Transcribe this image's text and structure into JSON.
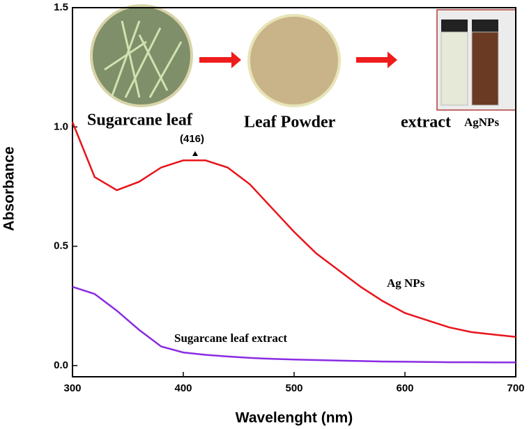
{
  "chart_data": {
    "type": "line",
    "x_label": "Wavelenght (nm)",
    "y_label": "Absorbance",
    "x": [
      300,
      320,
      340,
      360,
      380,
      400,
      420,
      440,
      460,
      480,
      500,
      520,
      540,
      560,
      580,
      600,
      620,
      640,
      660,
      680,
      700
    ],
    "series": [
      {
        "name": "Ag NPs",
        "color": "#e8141a",
        "values": [
          1.02,
          0.79,
          0.735,
          0.77,
          0.83,
          0.86,
          0.86,
          0.83,
          0.76,
          0.66,
          0.56,
          0.47,
          0.4,
          0.33,
          0.27,
          0.22,
          0.19,
          0.16,
          0.14,
          0.13,
          0.12
        ]
      },
      {
        "name": "Sugarcane leaf extract",
        "color": "#8a2be2",
        "values": [
          0.33,
          0.3,
          0.23,
          0.15,
          0.08,
          0.055,
          0.045,
          0.038,
          0.032,
          0.028,
          0.025,
          0.023,
          0.021,
          0.019,
          0.017,
          0.016,
          0.015,
          0.014,
          0.014,
          0.013,
          0.013
        ]
      }
    ],
    "xlim": [
      300,
      700
    ],
    "ylim": [
      -0.047,
      1.5
    ],
    "xticks": [
      300,
      400,
      500,
      600,
      700
    ],
    "yticks": [
      {
        "value": 0,
        "label": "0.0"
      },
      0.5,
      {
        "value": 1,
        "label": "1.0"
      },
      1.5
    ],
    "annotations": [
      "Sugarcane leaf",
      "Leaf Powder",
      "extract",
      "AgNPs",
      "(416)"
    ]
  }
}
